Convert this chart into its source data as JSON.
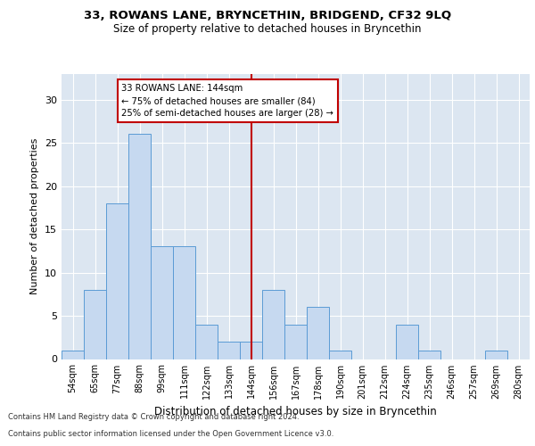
{
  "title1": "33, ROWANS LANE, BRYNCETHIN, BRIDGEND, CF32 9LQ",
  "title2": "Size of property relative to detached houses in Bryncethin",
  "xlabel": "Distribution of detached houses by size in Bryncethin",
  "ylabel": "Number of detached properties",
  "bin_labels": [
    "54sqm",
    "65sqm",
    "77sqm",
    "88sqm",
    "99sqm",
    "111sqm",
    "122sqm",
    "133sqm",
    "144sqm",
    "156sqm",
    "167sqm",
    "178sqm",
    "190sqm",
    "201sqm",
    "212sqm",
    "224sqm",
    "235sqm",
    "246sqm",
    "257sqm",
    "269sqm",
    "280sqm"
  ],
  "bar_heights": [
    1,
    8,
    18,
    26,
    13,
    13,
    4,
    2,
    2,
    8,
    4,
    6,
    1,
    0,
    0,
    4,
    1,
    0,
    0,
    1,
    0
  ],
  "bar_color": "#c6d9f0",
  "bar_edge_color": "#5b9bd5",
  "vline_x_index": 8,
  "vline_color": "#c00000",
  "annotation_title": "33 ROWANS LANE: 144sqm",
  "annotation_line2": "← 75% of detached houses are smaller (84)",
  "annotation_line3": "25% of semi-detached houses are larger (28) →",
  "annotation_box_color": "#c00000",
  "ylim": [
    0,
    33
  ],
  "yticks": [
    0,
    5,
    10,
    15,
    20,
    25,
    30
  ],
  "background_color": "#dce6f1",
  "footer1": "Contains HM Land Registry data © Crown copyright and database right 2024.",
  "footer2": "Contains public sector information licensed under the Open Government Licence v3.0."
}
